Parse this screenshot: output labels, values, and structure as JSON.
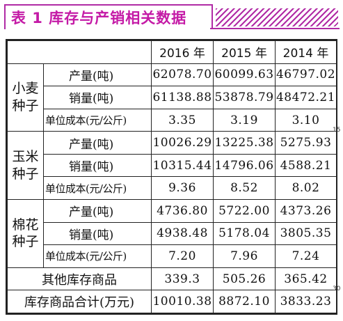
{
  "title": "表 1   库存与产销相关数据",
  "columns": [
    "2016 年",
    "2015 年",
    "2014 年"
  ],
  "groups": [
    {
      "category": "小麦种子",
      "rows": [
        {
          "metric": "产量(吨)",
          "values": [
            "62078.70",
            "60099.63",
            "46797.02"
          ]
        },
        {
          "metric": "销量(吨)",
          "values": [
            "61138.88",
            "53878.79",
            "48472.21"
          ]
        },
        {
          "metric": "单位成本(元/公斤)",
          "values": [
            "3.35",
            "3.19",
            "3.10"
          ]
        }
      ]
    },
    {
      "category": "玉米种子",
      "rows": [
        {
          "metric": "产量(吨)",
          "values": [
            "10026.29",
            "13225.38",
            "5275.93"
          ]
        },
        {
          "metric": "销量(吨)",
          "values": [
            "10315.44",
            "14796.06",
            "4588.21"
          ]
        },
        {
          "metric": "单位成本(元/公斤)",
          "values": [
            "9.36",
            "8.52",
            "8.02"
          ]
        }
      ]
    },
    {
      "category": "棉花种子",
      "rows": [
        {
          "metric": "产量(吨)",
          "values": [
            "4736.80",
            "5722.00",
            "4373.26"
          ]
        },
        {
          "metric": "销量(吨)",
          "values": [
            "4938.48",
            "5178.04",
            "3805.35"
          ]
        },
        {
          "metric": "单位成本(元/公斤)",
          "values": [
            "7.20",
            "7.96",
            "7.24"
          ]
        }
      ]
    }
  ],
  "other_inventory": {
    "label": "其他库存商品",
    "values": [
      "339.3",
      "505.26",
      "365.42"
    ]
  },
  "total": {
    "label": "库存商品合计(万元)",
    "values": [
      "10010.38",
      "8872.10",
      "3833.23"
    ]
  },
  "margin_marks": [
    "15",
    "30"
  ],
  "colors": {
    "accent": "#c41aa6",
    "hatch": "#b02aa5",
    "border": "#222222"
  }
}
